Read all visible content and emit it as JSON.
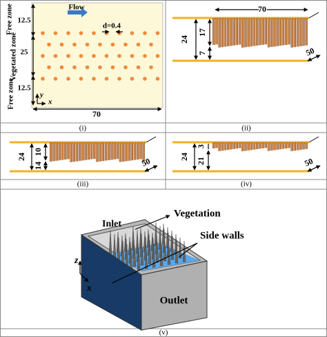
{
  "panel_i": {
    "free_top": "Free zone",
    "free_top_width": "12.5",
    "flow": "Flow",
    "diameter": "d=0.4",
    "vegetated": "Vegetated zone",
    "vegetated_width": "25",
    "free_bottom": "Free zone",
    "free_bottom_width": "12.5",
    "y_axis": "y",
    "x_axis": "x",
    "length": "70",
    "caption": "(i)"
  },
  "panel_ii": {
    "length": "70",
    "depth": "24",
    "vegetation_height": "17",
    "gap": "7",
    "width": "50",
    "caption": "(ii)"
  },
  "panel_iii": {
    "vegetation_height": "10",
    "depth": "24",
    "gap": "14",
    "width": "50",
    "caption": "(iii)"
  },
  "panel_iv": {
    "vegetation_height": "3",
    "depth": "24",
    "gap": "21",
    "width": "50",
    "caption": "(iv)"
  },
  "panel_v": {
    "inlet": "Inlet",
    "vegetation": "Vegetation",
    "side_walls": "Side walls",
    "z_axis": "z",
    "x_axis": "x",
    "outlet": "Outlet",
    "caption": "(v)"
  }
}
